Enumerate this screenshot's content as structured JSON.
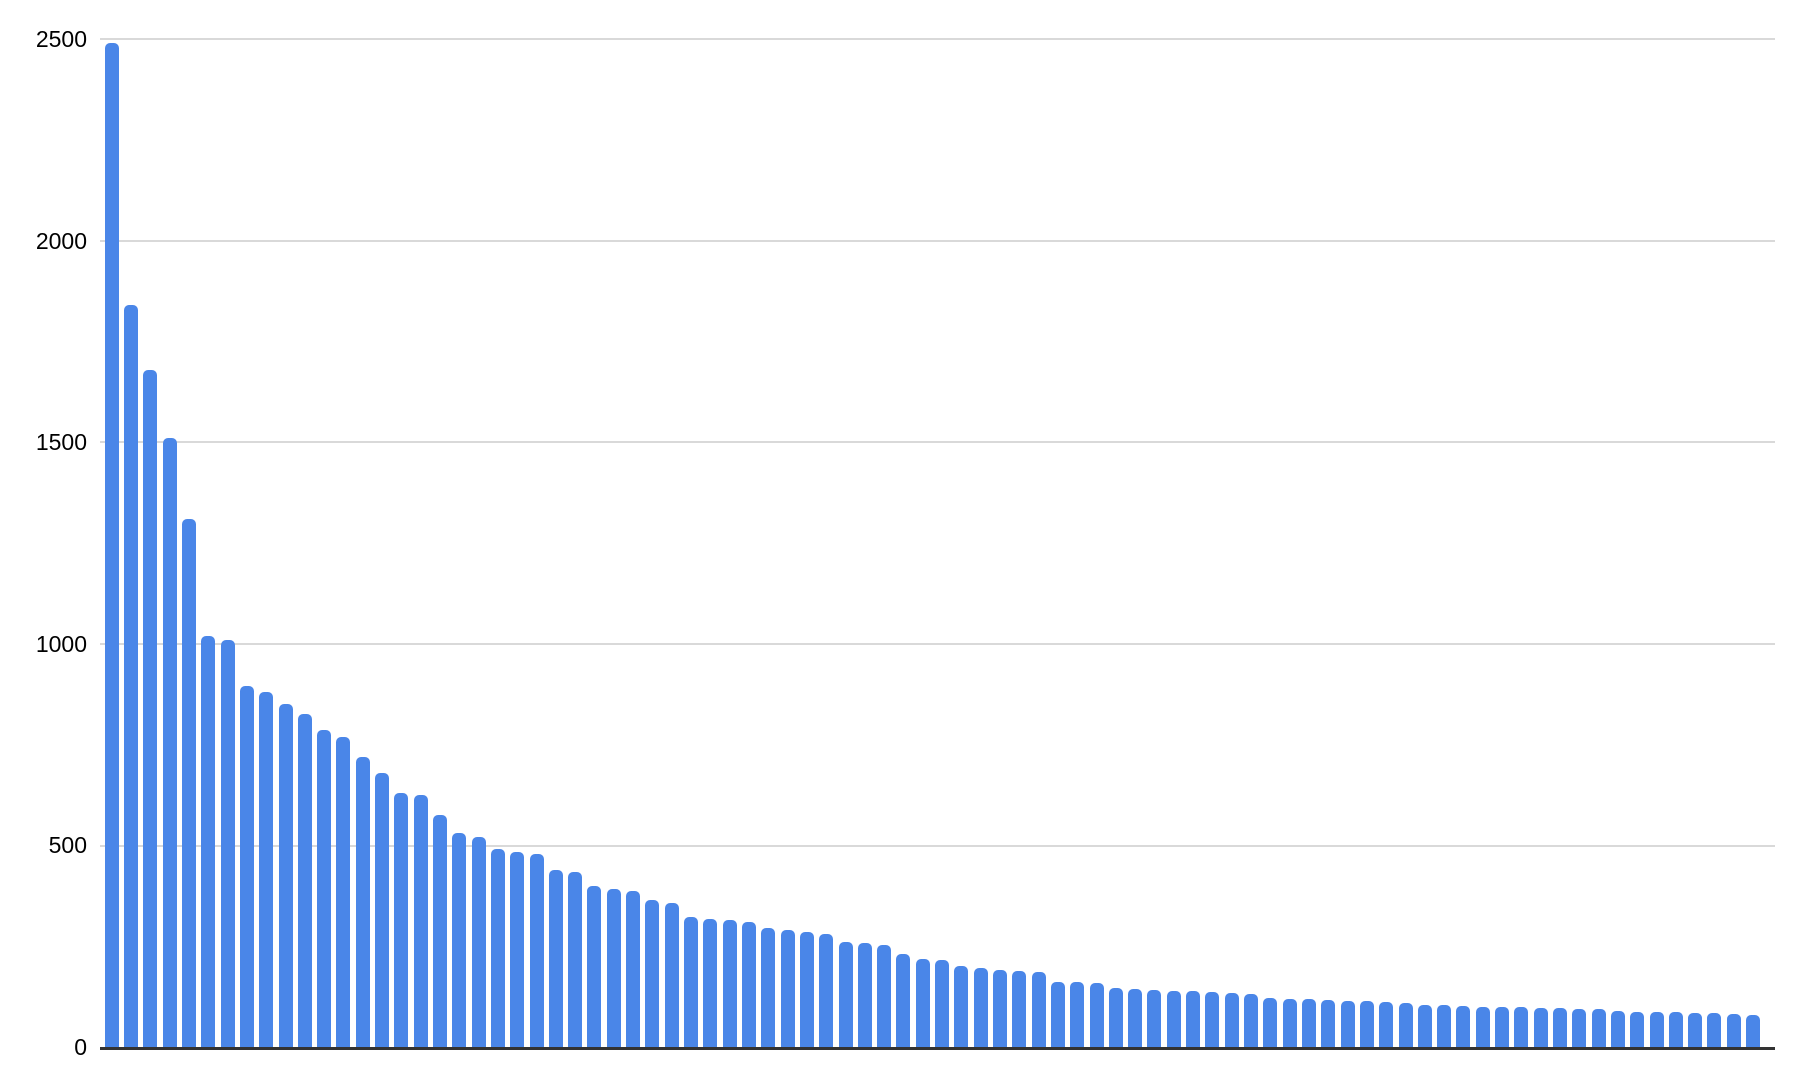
{
  "chart_data": {
    "type": "bar",
    "title": "",
    "xlabel": "",
    "ylabel": "",
    "categories": [],
    "values": [
      2490,
      1840,
      1680,
      1510,
      1310,
      1020,
      1010,
      895,
      880,
      850,
      825,
      785,
      770,
      720,
      680,
      630,
      625,
      575,
      530,
      520,
      490,
      484,
      478,
      440,
      433,
      400,
      392,
      388,
      365,
      358,
      322,
      318,
      315,
      310,
      295,
      290,
      285,
      280,
      260,
      257,
      254,
      230,
      218,
      215,
      200,
      196,
      192,
      189,
      185,
      162,
      160,
      158,
      146,
      143,
      141,
      140,
      138,
      136,
      134,
      132,
      122,
      120,
      118,
      117,
      115,
      113,
      111,
      108,
      105,
      103,
      101,
      100,
      99,
      98,
      97,
      96,
      95,
      94,
      90,
      88,
      87,
      86,
      85,
      84,
      82,
      80
    ],
    "ylim": [
      0,
      2500
    ],
    "yticks": [
      0,
      500,
      1000,
      1500,
      2000,
      2500
    ],
    "grid": true,
    "legend_position": "none",
    "bar_color": "#4a86e8",
    "gridline_color": "#d9d9d9",
    "axis_line_color": "#333333",
    "tick_label_color": "#000000"
  }
}
